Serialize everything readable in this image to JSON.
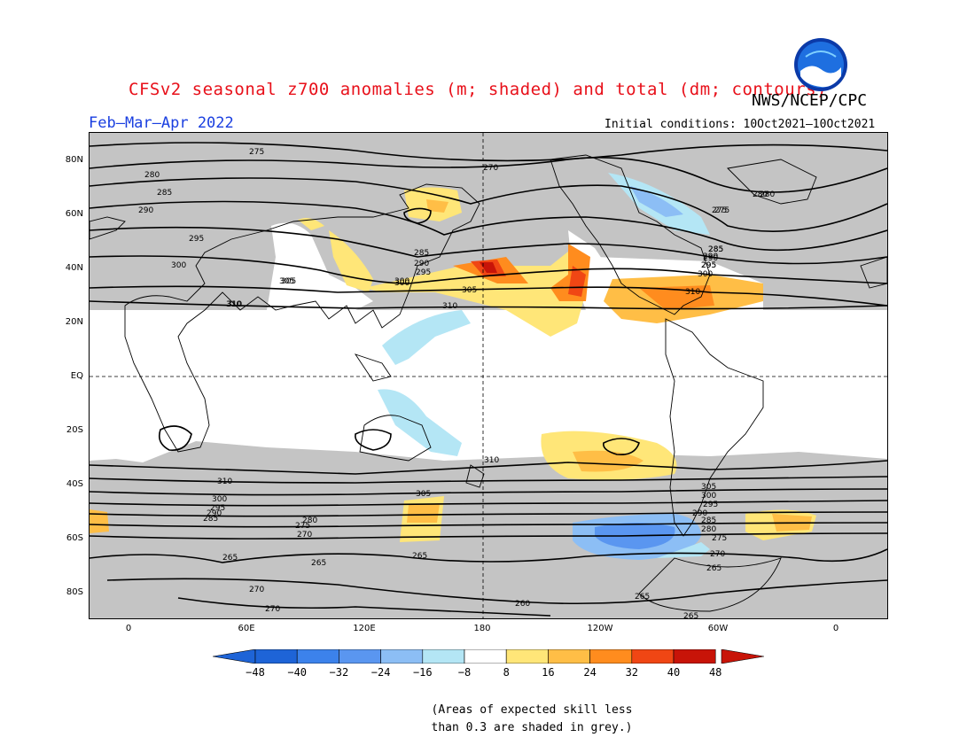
{
  "title": "CFSv2 seasonal z700 anomalies (m; shaded) and total (dm; contours)",
  "agency": "NWS/NCEP/CPC",
  "period": "Feb–Mar–Apr 2022",
  "initial_conditions": "Initial conditions: 10Oct2021–10Oct2021",
  "logo_text": "NOAA",
  "lat_labels": [
    "80N",
    "60N",
    "40N",
    "20N",
    "EQ",
    "20S",
    "40S",
    "60S",
    "80S"
  ],
  "lon_labels": [
    "0",
    "60E",
    "120E",
    "180",
    "120W",
    "60W",
    "0"
  ],
  "colorbar": {
    "labels": [
      "−48",
      "−40",
      "−32",
      "−24",
      "−16",
      "−8",
      "8",
      "16",
      "24",
      "32",
      "40",
      "48"
    ],
    "colors": [
      "#1e64d7",
      "#3c82eb",
      "#5a96f0",
      "#8cbef5",
      "#b4e6f5",
      "#ffffff",
      "#ffe678",
      "#ffbe46",
      "#ff8c1e",
      "#f04614",
      "#c81408"
    ]
  },
  "note_lines": [
    "(Areas of expected skill less",
    "than 0.3 are shaded in grey.)"
  ],
  "contour_labels": [
    "275",
    "280",
    "285",
    "290",
    "295",
    "300",
    "305",
    "310",
    "310",
    "310",
    "310",
    "305",
    "300",
    "295",
    "290",
    "285",
    "280",
    "275",
    "270",
    "265",
    "265",
    "265",
    "270",
    "270",
    "260",
    "265",
    "265",
    "300",
    "305",
    "310",
    "285",
    "290",
    "295",
    "300",
    "305",
    "310",
    "300",
    "295",
    "290",
    "285",
    "280",
    "275",
    "270",
    "305",
    "300",
    "295",
    "290",
    "285",
    "280",
    "275",
    "270",
    "265",
    "275",
    "280",
    "285",
    "290",
    "295"
  ]
}
